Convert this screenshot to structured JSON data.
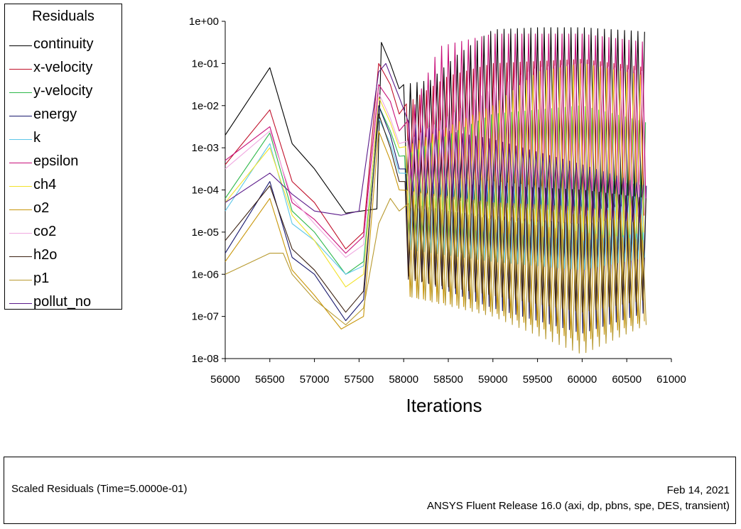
{
  "chart_data": {
    "type": "line",
    "title": "Scaled Residuals",
    "xlabel": "Iterations",
    "ylabel": "",
    "yscale": "log",
    "xlim": [
      56000,
      61000
    ],
    "ylim": [
      1e-08,
      1
    ],
    "x_ticks": [
      "56000",
      "56500",
      "57000",
      "57500",
      "58000",
      "58500",
      "59000",
      "59500",
      "60000",
      "60500",
      "61000"
    ],
    "y_ticks": [
      "1e+00",
      "1e-01",
      "1e-02",
      "1e-03",
      "1e-04",
      "1e-05",
      "1e-06",
      "1e-07",
      "1e-08"
    ],
    "legend_title": "Residuals",
    "legend_position": "left",
    "series": [
      {
        "name": "continuity",
        "color": "#000000",
        "points": [
          [
            56000,
            -2.7
          ],
          [
            56500,
            -1.1
          ],
          [
            56750,
            -2.9
          ],
          [
            57000,
            -3.5
          ],
          [
            57350,
            -4.55
          ],
          [
            57700,
            -4.45
          ],
          [
            57750,
            -0.5
          ],
          [
            57850,
            -1.0
          ],
          [
            57950,
            -1.6
          ]
        ],
        "osc": {
          "start": 58000,
          "end": 60720,
          "period": 75,
          "hi": [
            [
              58000,
              -1.5
            ],
            [
              58300,
              -1.4
            ],
            [
              58600,
              -0.8
            ],
            [
              59000,
              -0.2
            ],
            [
              59500,
              -0.15
            ],
            [
              60000,
              -0.15
            ],
            [
              60720,
              -0.25
            ]
          ],
          "lo": [
            [
              58000,
              -4.0
            ],
            [
              59000,
              -4.4
            ],
            [
              60000,
              -4.5
            ],
            [
              60720,
              -4.3
            ]
          ]
        }
      },
      {
        "name": "x-velocity",
        "color": "#c0102a",
        "points": [
          [
            56000,
            -3.4
          ],
          [
            56500,
            -2.1
          ],
          [
            56750,
            -3.8
          ],
          [
            57000,
            -4.3
          ],
          [
            57350,
            -5.4
          ],
          [
            57550,
            -5.0
          ],
          [
            57720,
            -1.0
          ],
          [
            57850,
            -1.5
          ],
          [
            57950,
            -2.2
          ]
        ],
        "osc": {
          "start": 58030,
          "end": 60720,
          "period": 75,
          "hi": [
            [
              58000,
              -2.0
            ],
            [
              58500,
              -1.3
            ],
            [
              59000,
              -1.0
            ],
            [
              60000,
              -0.9
            ],
            [
              60720,
              -1.1
            ]
          ],
          "lo": [
            [
              58000,
              -4.2
            ],
            [
              59000,
              -4.7
            ],
            [
              60000,
              -4.8
            ],
            [
              60720,
              -4.6
            ]
          ]
        }
      },
      {
        "name": "y-velocity",
        "color": "#2db84a",
        "points": [
          [
            56000,
            -4.2
          ],
          [
            56500,
            -2.65
          ],
          [
            56750,
            -4.5
          ],
          [
            57000,
            -5.0
          ],
          [
            57350,
            -6.0
          ],
          [
            57550,
            -5.7
          ],
          [
            57720,
            -2.0
          ],
          [
            57850,
            -2.6
          ],
          [
            57950,
            -3.2
          ]
        ],
        "osc": {
          "start": 58010,
          "end": 60720,
          "period": 75,
          "hi": [
            [
              58000,
              -3.2
            ],
            [
              59000,
              -2.2
            ],
            [
              60000,
              -2.0
            ],
            [
              60720,
              -2.4
            ]
          ],
          "lo": [
            [
              58000,
              -5.3
            ],
            [
              59000,
              -5.6
            ],
            [
              60000,
              -5.8
            ],
            [
              60720,
              -5.6
            ]
          ]
        }
      },
      {
        "name": "energy",
        "color": "#1a1a6e",
        "points": [
          [
            56000,
            -5.5
          ],
          [
            56500,
            -3.8
          ],
          [
            56750,
            -5.6
          ],
          [
            57000,
            -6.0
          ],
          [
            57350,
            -7.1
          ],
          [
            57550,
            -6.6
          ],
          [
            57720,
            -2.0
          ],
          [
            57850,
            -2.7
          ],
          [
            57950,
            -3.5
          ]
        ],
        "osc": {
          "start": 58020,
          "end": 60720,
          "period": 75,
          "hi": [
            [
              58000,
              -3.5
            ],
            [
              59000,
              -3.6
            ],
            [
              60000,
              -3.7
            ],
            [
              60720,
              -3.9
            ]
          ],
          "lo": [
            [
              58000,
              -6.0
            ],
            [
              59000,
              -6.8
            ],
            [
              60000,
              -7.4
            ],
            [
              60720,
              -6.9
            ]
          ]
        }
      },
      {
        "name": "k",
        "color": "#5ec7e8",
        "points": [
          [
            56000,
            -4.5
          ],
          [
            56500,
            -2.9
          ],
          [
            56750,
            -4.8
          ],
          [
            57000,
            -5.2
          ],
          [
            57350,
            -6.0
          ],
          [
            57550,
            -5.8
          ],
          [
            57720,
            -2.3
          ],
          [
            57850,
            -2.9
          ],
          [
            57950,
            -3.6
          ]
        ],
        "osc": {
          "start": 58040,
          "end": 60720,
          "period": 75,
          "hi": [
            [
              58000,
              -3.6
            ],
            [
              59000,
              -3.8
            ],
            [
              60000,
              -4.0
            ],
            [
              60720,
              -4.2
            ]
          ],
          "lo": [
            [
              58000,
              -5.4
            ],
            [
              59000,
              -5.7
            ],
            [
              60000,
              -5.9
            ],
            [
              60720,
              -5.6
            ]
          ]
        }
      },
      {
        "name": "epsilon",
        "color": "#c8107a",
        "points": [
          [
            56000,
            -3.3
          ],
          [
            56500,
            -2.5
          ],
          [
            56750,
            -4.3
          ],
          [
            57000,
            -4.7
          ],
          [
            57350,
            -5.5
          ],
          [
            57550,
            -5.1
          ],
          [
            57720,
            -1.5
          ],
          [
            57850,
            -1.9
          ],
          [
            57950,
            -2.6
          ]
        ],
        "osc": {
          "start": 58050,
          "end": 60720,
          "period": 75,
          "hi": [
            [
              58000,
              -2.6
            ],
            [
              58400,
              -0.6
            ],
            [
              59000,
              -0.3
            ],
            [
              60000,
              -0.3
            ],
            [
              60720,
              -0.5
            ]
          ],
          "lo": [
            [
              58000,
              -4.0
            ],
            [
              59000,
              -4.2
            ],
            [
              60000,
              -4.4
            ],
            [
              60720,
              -4.2
            ]
          ]
        }
      },
      {
        "name": "ch4",
        "color": "#f2e22a",
        "points": [
          [
            56000,
            -4.3
          ],
          [
            56500,
            -3.0
          ],
          [
            56750,
            -4.6
          ],
          [
            57000,
            -5.2
          ],
          [
            57350,
            -6.3
          ],
          [
            57550,
            -6.0
          ],
          [
            57720,
            -1.8
          ],
          [
            57850,
            -2.4
          ],
          [
            57950,
            -3.0
          ]
        ],
        "osc": {
          "start": 58025,
          "end": 60720,
          "period": 75,
          "hi": [
            [
              58000,
              -3.0
            ],
            [
              59000,
              -2.0
            ],
            [
              59500,
              -1.2
            ],
            [
              60000,
              -1.0
            ],
            [
              60720,
              -1.3
            ]
          ],
          "lo": [
            [
              58000,
              -4.8
            ],
            [
              59000,
              -5.0
            ],
            [
              60000,
              -5.2
            ],
            [
              60720,
              -5.0
            ]
          ]
        }
      },
      {
        "name": "o2",
        "color": "#c8960a",
        "points": [
          [
            56000,
            -5.7
          ],
          [
            56500,
            -4.2
          ],
          [
            56750,
            -5.9
          ],
          [
            57000,
            -6.5
          ],
          [
            57300,
            -7.3
          ],
          [
            57550,
            -7.0
          ],
          [
            57720,
            -2.6
          ],
          [
            57850,
            -3.3
          ],
          [
            57950,
            -4.0
          ]
        ],
        "osc": {
          "start": 58035,
          "end": 60720,
          "period": 75,
          "hi": [
            [
              58000,
              -4.0
            ],
            [
              59000,
              -4.3
            ],
            [
              60000,
              -4.4
            ],
            [
              60720,
              -4.6
            ]
          ],
          "lo": [
            [
              58000,
              -6.5
            ],
            [
              59000,
              -6.9
            ],
            [
              60000,
              -7.6
            ],
            [
              60720,
              -7.1
            ]
          ]
        }
      },
      {
        "name": "co2",
        "color": "#f0a8e0",
        "points": [
          [
            56000,
            -3.5
          ],
          [
            56500,
            -2.6
          ],
          [
            56750,
            -4.2
          ],
          [
            57000,
            -4.8
          ],
          [
            57350,
            -5.6
          ],
          [
            57550,
            -5.3
          ],
          [
            57720,
            -1.7
          ],
          [
            57850,
            -2.3
          ],
          [
            57950,
            -2.9
          ]
        ],
        "osc": {
          "start": 58045,
          "end": 60720,
          "period": 75,
          "hi": [
            [
              58000,
              -2.9
            ],
            [
              59000,
              -1.6
            ],
            [
              59500,
              -1.1
            ],
            [
              60000,
              -1.0
            ],
            [
              60720,
              -1.2
            ]
          ],
          "lo": [
            [
              58000,
              -4.4
            ],
            [
              59000,
              -4.6
            ],
            [
              60000,
              -4.8
            ],
            [
              60720,
              -4.6
            ]
          ]
        }
      },
      {
        "name": "h2o",
        "color": "#3a2010",
        "points": [
          [
            56000,
            -5.2
          ],
          [
            56500,
            -3.9
          ],
          [
            56750,
            -5.4
          ],
          [
            57000,
            -5.9
          ],
          [
            57350,
            -6.9
          ],
          [
            57550,
            -6.4
          ],
          [
            57720,
            -2.2
          ],
          [
            57850,
            -3.0
          ],
          [
            57950,
            -3.8
          ]
        ],
        "osc": {
          "start": 58015,
          "end": 60720,
          "period": 75,
          "hi": [
            [
              58000,
              -3.8
            ],
            [
              59000,
              -3.9
            ],
            [
              60000,
              -4.0
            ],
            [
              60720,
              -4.2
            ]
          ],
          "lo": [
            [
              58000,
              -6.1
            ],
            [
              59000,
              -6.5
            ],
            [
              60000,
              -6.9
            ],
            [
              60720,
              -6.6
            ]
          ]
        }
      },
      {
        "name": "p1",
        "color": "#b89a30",
        "points": [
          [
            56000,
            -6.0
          ],
          [
            56500,
            -5.5
          ],
          [
            56650,
            -5.5
          ],
          [
            56750,
            -6.0
          ],
          [
            57000,
            -6.6
          ],
          [
            57350,
            -7.2
          ],
          [
            57550,
            -6.8
          ],
          [
            57720,
            -4.8
          ],
          [
            57850,
            -4.2
          ],
          [
            57950,
            -4.5
          ]
        ],
        "osc": {
          "start": 58055,
          "end": 60720,
          "period": 75,
          "hi": [
            [
              58000,
              -4.3
            ],
            [
              59000,
              -4.7
            ],
            [
              60000,
              -5.0
            ],
            [
              60720,
              -5.2
            ]
          ],
          "lo": [
            [
              58000,
              -6.5
            ],
            [
              59000,
              -7.0
            ],
            [
              60000,
              -7.9
            ],
            [
              60720,
              -7.2
            ]
          ]
        }
      },
      {
        "name": "pollut_no",
        "color": "#5a1a8a",
        "points": [
          [
            56000,
            -4.3
          ],
          [
            56500,
            -3.6
          ],
          [
            56750,
            -4.1
          ],
          [
            57000,
            -4.5
          ],
          [
            57300,
            -4.6
          ],
          [
            57500,
            -4.5
          ],
          [
            57720,
            -1.2
          ],
          [
            57800,
            -1.0
          ],
          [
            57950,
            -1.8
          ]
        ],
        "osc": {
          "start": 58060,
          "end": 60720,
          "period": 75,
          "hi": [
            [
              58000,
              -2.4
            ],
            [
              59000,
              -2.8
            ],
            [
              60000,
              -3.4
            ],
            [
              60720,
              -3.9
            ]
          ],
          "lo": [
            [
              58000,
              -4.1
            ],
            [
              59000,
              -4.3
            ],
            [
              60000,
              -4.6
            ],
            [
              60720,
              -4.8
            ]
          ]
        }
      }
    ]
  },
  "footer": {
    "left_text": "Scaled Residuals  (Time=5.0000e-01)",
    "date": "Feb 14, 2021",
    "release": "ANSYS Fluent Release 16.0 (axi, dp, pbns, spe, DES, transient)"
  }
}
